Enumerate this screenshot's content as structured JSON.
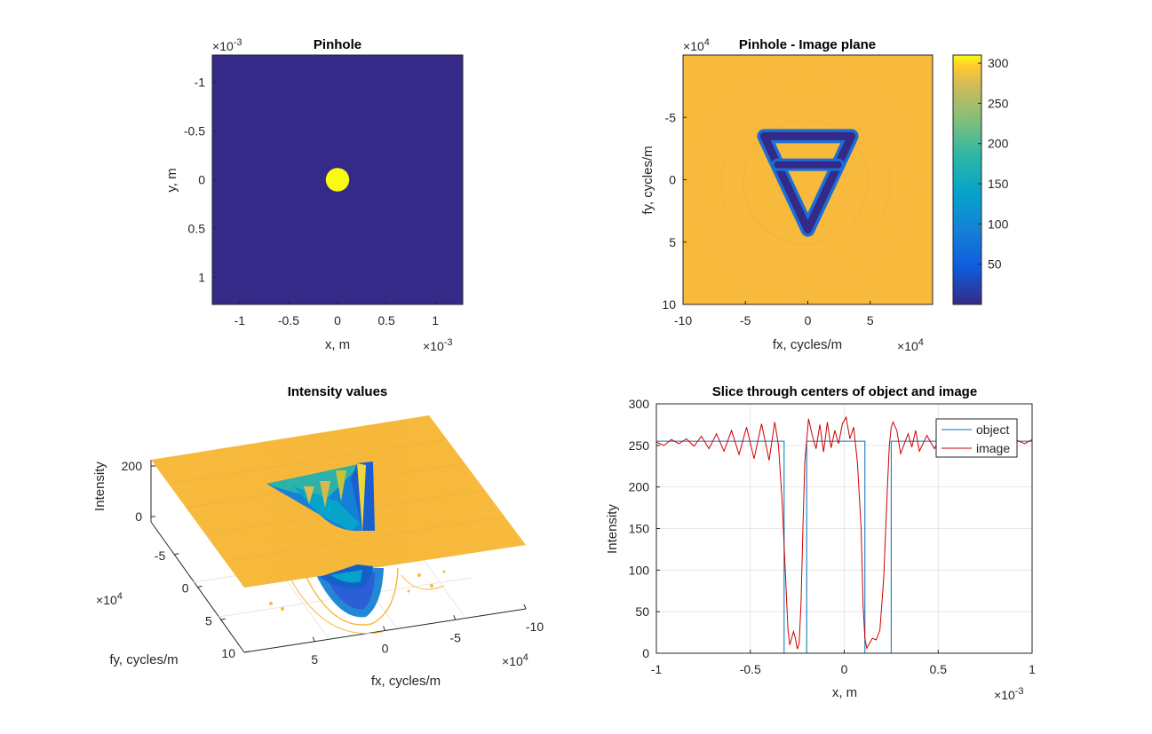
{
  "colors": {
    "parula_dark": "#352a87",
    "parula_yellow": "#f9fb0e",
    "parula_orange": "#f8ba3c",
    "object_line": "#0072bd",
    "image_line": "#d00000",
    "axis": "#262626",
    "grid": "#e6e6e6"
  },
  "chart_data": [
    {
      "type": "heatmap",
      "title": "Pinhole",
      "xlabel": "x, m",
      "ylabel": "y, m",
      "xlim": [
        -1.28,
        1.28
      ],
      "ylim": [
        -1.28,
        1.28
      ],
      "x_ticks": [
        -1,
        -0.5,
        0,
        0.5,
        1
      ],
      "x_tick_labels": [
        "-1",
        "-0.5",
        "0",
        "0.5",
        "1"
      ],
      "y_ticks": [
        -1,
        -0.5,
        0,
        0.5,
        1
      ],
      "y_tick_labels": [
        "-1",
        "-0.5",
        "0",
        "0.5",
        "1"
      ],
      "x_exponent": "10",
      "x_exponent_power": "-3",
      "y_exponent": "10",
      "y_exponent_power": "-3",
      "background_value": 0,
      "pinhole": {
        "center": [
          0,
          0
        ],
        "radius": 0.12,
        "value": 1
      }
    },
    {
      "type": "heatmap",
      "title": "Pinhole - Image plane",
      "xlabel": "fx, cycles/m",
      "ylabel": "fy, cycles/m",
      "xlim": [
        -10,
        10
      ],
      "ylim": [
        -10,
        10
      ],
      "x_ticks": [
        -10,
        -5,
        0,
        5
      ],
      "x_tick_labels": [
        "-10",
        "-5",
        "0",
        "5"
      ],
      "y_ticks": [
        -5,
        0,
        5,
        10
      ],
      "y_tick_labels": [
        "-5",
        "0",
        "5",
        "10"
      ],
      "x_exponent": "10",
      "x_exponent_power": "4",
      "y_exponent": "10",
      "y_exponent_power": "4",
      "background_value": 255,
      "shape_value": 5,
      "shape_vertices": [
        [
          -3.5,
          -3.5
        ],
        [
          3.5,
          -3.5
        ],
        [
          0,
          4.0
        ]
      ],
      "crossbar_y": -1.2,
      "colorbar": {
        "ticks": [
          50,
          100,
          150,
          200,
          250,
          300
        ],
        "tick_labels": [
          "50",
          "100",
          "150",
          "200",
          "250",
          "300"
        ],
        "range": [
          0,
          310
        ]
      }
    },
    {
      "type": "surface",
      "title": "Intensity values",
      "xlabel": "fx, cycles/m",
      "ylabel": "fy, cycles/m",
      "zlabel": "Intensity",
      "x_ticks": [
        5,
        0,
        -5,
        -10
      ],
      "x_tick_labels": [
        "5",
        "0",
        "-5",
        "-10"
      ],
      "y_ticks": [
        -5,
        0,
        5,
        10
      ],
      "y_tick_labels": [
        "-5",
        "0",
        "5",
        "10"
      ],
      "z_ticks": [
        0,
        200
      ],
      "z_tick_labels": [
        "0",
        "200"
      ],
      "x_exponent": "10",
      "x_exponent_power": "4",
      "y_exponent": "10",
      "y_exponent_power": "4",
      "surface_level": 255
    },
    {
      "type": "line",
      "title": "Slice through centers of object and image",
      "xlabel": "x, m",
      "ylabel": "Intensity",
      "xlim": [
        -1,
        1
      ],
      "ylim": [
        0,
        300
      ],
      "x_ticks": [
        -1,
        -0.5,
        0,
        0.5,
        1
      ],
      "x_tick_labels": [
        "-1",
        "-0.5",
        "0",
        "0.5",
        "1"
      ],
      "y_ticks": [
        0,
        50,
        100,
        150,
        200,
        250,
        300
      ],
      "y_tick_labels": [
        "0",
        "50",
        "100",
        "150",
        "200",
        "250",
        "300"
      ],
      "x_exponent": "10",
      "x_exponent_power": "-3",
      "grid": true,
      "legend_position": "top-right",
      "series": [
        {
          "name": "object",
          "x": [
            -1,
            -0.32,
            -0.32,
            -0.2,
            -0.2,
            0.11,
            0.11,
            0.25,
            0.25,
            1
          ],
          "y": [
            255,
            255,
            0,
            0,
            255,
            255,
            0,
            0,
            255,
            255
          ]
        },
        {
          "name": "image",
          "x": [
            -1.0,
            -0.96,
            -0.92,
            -0.88,
            -0.84,
            -0.8,
            -0.76,
            -0.72,
            -0.68,
            -0.64,
            -0.6,
            -0.56,
            -0.52,
            -0.48,
            -0.44,
            -0.4,
            -0.37,
            -0.35,
            -0.33,
            -0.31,
            -0.3,
            -0.29,
            -0.28,
            -0.27,
            -0.26,
            -0.25,
            -0.24,
            -0.23,
            -0.22,
            -0.21,
            -0.19,
            -0.17,
            -0.15,
            -0.13,
            -0.11,
            -0.09,
            -0.07,
            -0.05,
            -0.03,
            -0.01,
            0.01,
            0.03,
            0.05,
            0.07,
            0.09,
            0.1,
            0.11,
            0.12,
            0.13,
            0.15,
            0.17,
            0.19,
            0.21,
            0.23,
            0.24,
            0.25,
            0.26,
            0.28,
            0.3,
            0.32,
            0.34,
            0.36,
            0.38,
            0.4,
            0.44,
            0.48,
            0.52,
            0.56,
            0.6,
            0.64,
            0.68,
            0.72,
            0.76,
            0.8,
            0.84,
            0.88,
            0.92,
            0.96,
            1.0
          ],
          "y": [
            254,
            250,
            257,
            252,
            258,
            249,
            261,
            246,
            264,
            243,
            268,
            239,
            272,
            234,
            276,
            232,
            278,
            250,
            180,
            80,
            30,
            10,
            18,
            26,
            18,
            5,
            12,
            60,
            150,
            230,
            282,
            262,
            246,
            275,
            242,
            278,
            247,
            268,
            252,
            276,
            284,
            258,
            272,
            230,
            150,
            60,
            18,
            6,
            10,
            18,
            16,
            28,
            90,
            200,
            250,
            272,
            278,
            268,
            240,
            252,
            264,
            248,
            268,
            243,
            262,
            246,
            262,
            248,
            258,
            250,
            260,
            248,
            258,
            250,
            256,
            252,
            256,
            252,
            257
          ]
        }
      ]
    }
  ]
}
